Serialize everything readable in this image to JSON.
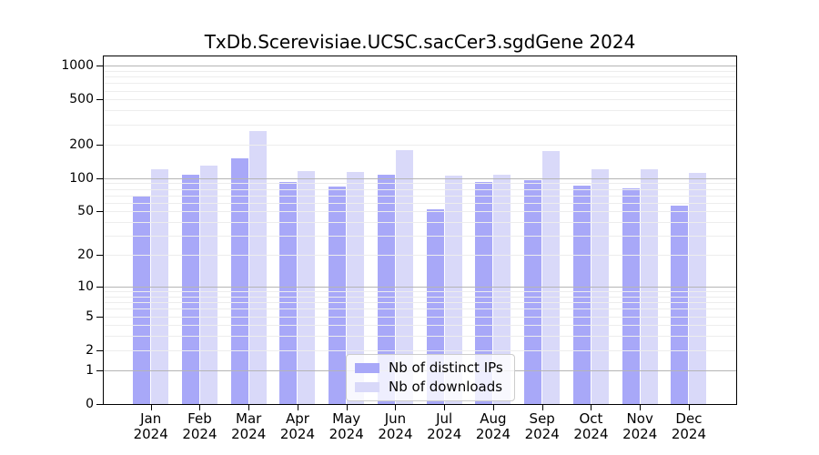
{
  "chart_data": {
    "type": "bar",
    "title": "TxDb.Scerevisiae.UCSC.sacCer3.sgdGene 2024",
    "months": [
      "Jan",
      "Feb",
      "Mar",
      "Apr",
      "May",
      "Jun",
      "Jul",
      "Aug",
      "Sep",
      "Oct",
      "Nov",
      "Dec"
    ],
    "year": "2024",
    "series": [
      {
        "name": "Nb of distinct IPs",
        "color": "#a8a8f8",
        "values": [
          69,
          107,
          151,
          92,
          84,
          108,
          52,
          92,
          96,
          85,
          81,
          56
        ]
      },
      {
        "name": "Nb of downloads",
        "color": "#d9d9f9",
        "values": [
          119,
          129,
          264,
          115,
          114,
          176,
          106,
          108,
          174,
          119,
          120,
          111
        ]
      }
    ],
    "yscale": "log1p",
    "ylim": [
      0,
      1233
    ],
    "y_ticks": [
      1000,
      500,
      200,
      100,
      50,
      20,
      10,
      5,
      2,
      1,
      0
    ],
    "grid": {
      "on": true,
      "major_ticks": [
        1,
        10,
        100,
        1000
      ],
      "major_color": "#b5b5b5",
      "minor_color": "#ededed",
      "drawn_above_bars": true
    },
    "legend": {
      "location": "lower center"
    },
    "xlabel": "",
    "ylabel": "",
    "axis_color": "#000000",
    "text_color": "#000000"
  }
}
